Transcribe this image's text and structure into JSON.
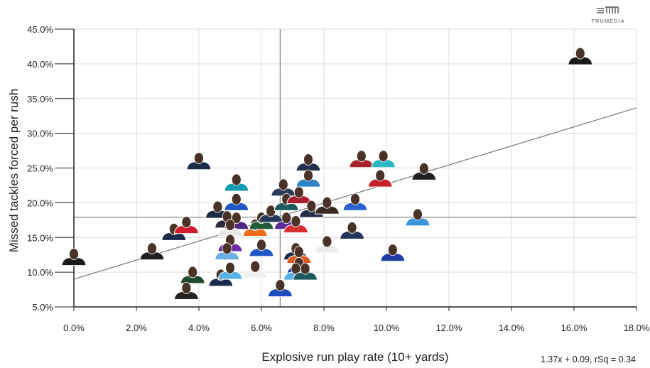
{
  "logo": {
    "text": "TRUMEDIA"
  },
  "chart_data": {
    "type": "scatter",
    "title": "",
    "xlabel": "Explosive run play rate (10+ yards)",
    "ylabel": "Missed tackles forced per rush",
    "xlim": [
      0,
      18
    ],
    "ylim": [
      5,
      45
    ],
    "x_ticks": [
      "0.0%",
      "2.0%",
      "4.0%",
      "6.0%",
      "8.0%",
      "10.0%",
      "12.0%",
      "14.0%",
      "16.0%",
      "18.0%"
    ],
    "y_ticks": [
      "5.0%",
      "10.0%",
      "15.0%",
      "20.0%",
      "25.0%",
      "30.0%",
      "35.0%",
      "40.0%",
      "45.0%"
    ],
    "grid": true,
    "marker": "player headshot",
    "average_lines": {
      "x": 6.6,
      "y": 17.9
    },
    "trendline": {
      "slope": 1.37,
      "intercept": 0.09,
      "label": "1.37x + 0.09, rSq = 0.34"
    },
    "points": [
      {
        "x": 0.0,
        "y": 12.1,
        "team_color": "#1a1a1a"
      },
      {
        "x": 2.5,
        "y": 12.9,
        "team_color": "#1e1e24"
      },
      {
        "x": 3.2,
        "y": 15.7,
        "team_color": "#1c2a4a"
      },
      {
        "x": 3.6,
        "y": 16.7,
        "team_color": "#d01c2a"
      },
      {
        "x": 3.8,
        "y": 9.5,
        "team_color": "#1f4a2c"
      },
      {
        "x": 3.6,
        "y": 7.2,
        "team_color": "#2a2420"
      },
      {
        "x": 4.0,
        "y": 25.9,
        "team_color": "#1b2a48"
      },
      {
        "x": 5.2,
        "y": 22.8,
        "team_color": "#139bb0"
      },
      {
        "x": 5.2,
        "y": 20.0,
        "team_color": "#1f55c4"
      },
      {
        "x": 4.6,
        "y": 18.9,
        "team_color": "#1b2a48"
      },
      {
        "x": 4.9,
        "y": 17.5,
        "team_color": "#2a2a3a"
      },
      {
        "x": 5.2,
        "y": 17.3,
        "team_color": "#4f2683"
      },
      {
        "x": 5.0,
        "y": 16.3,
        "team_color": "#e8e8e8"
      },
      {
        "x": 5.0,
        "y": 14.1,
        "team_color": "#6a2aa8"
      },
      {
        "x": 4.9,
        "y": 12.9,
        "team_color": "#6ab0e4"
      },
      {
        "x": 4.7,
        "y": 9.1,
        "team_color": "#1c2a4a"
      },
      {
        "x": 5.0,
        "y": 10.1,
        "team_color": "#58b4e6"
      },
      {
        "x": 5.8,
        "y": 10.3,
        "team_color": "#f0f0f0"
      },
      {
        "x": 5.8,
        "y": 16.3,
        "team_color": "#f06a1e"
      },
      {
        "x": 6.0,
        "y": 13.4,
        "team_color": "#1f55c4"
      },
      {
        "x": 6.0,
        "y": 17.3,
        "team_color": "#1e5a3a"
      },
      {
        "x": 6.3,
        "y": 18.3,
        "team_color": "#253a5a"
      },
      {
        "x": 6.7,
        "y": 22.1,
        "team_color": "#2a3c5a"
      },
      {
        "x": 6.8,
        "y": 20.0,
        "team_color": "#1d5a60"
      },
      {
        "x": 7.2,
        "y": 21.0,
        "team_color": "#a8202c"
      },
      {
        "x": 6.8,
        "y": 17.3,
        "team_color": "#5a2a9a"
      },
      {
        "x": 7.1,
        "y": 16.8,
        "team_color": "#d83030"
      },
      {
        "x": 7.5,
        "y": 25.7,
        "team_color": "#22304e"
      },
      {
        "x": 7.5,
        "y": 23.4,
        "team_color": "#2a84c8"
      },
      {
        "x": 7.6,
        "y": 19.0,
        "team_color": "#22304e"
      },
      {
        "x": 8.1,
        "y": 19.5,
        "team_color": "#3a2a22"
      },
      {
        "x": 7.1,
        "y": 12.9,
        "team_color": "#1b2a48"
      },
      {
        "x": 7.2,
        "y": 12.4,
        "team_color": "#e05a1e"
      },
      {
        "x": 7.2,
        "y": 10.8,
        "team_color": "#1e3ca8"
      },
      {
        "x": 7.1,
        "y": 10.0,
        "team_color": "#5ab0e8"
      },
      {
        "x": 7.4,
        "y": 10.0,
        "team_color": "#1d5a60"
      },
      {
        "x": 6.6,
        "y": 7.6,
        "team_color": "#1f4cc0"
      },
      {
        "x": 8.1,
        "y": 13.9,
        "team_color": "#ececec"
      },
      {
        "x": 9.0,
        "y": 20.0,
        "team_color": "#2a62d0"
      },
      {
        "x": 8.9,
        "y": 15.9,
        "team_color": "#253a5a"
      },
      {
        "x": 9.2,
        "y": 26.2,
        "team_color": "#a8202c"
      },
      {
        "x": 9.9,
        "y": 26.2,
        "team_color": "#2ab8c4"
      },
      {
        "x": 9.8,
        "y": 23.4,
        "team_color": "#c81e2a"
      },
      {
        "x": 11.2,
        "y": 24.4,
        "team_color": "#1e1e1e"
      },
      {
        "x": 11.0,
        "y": 17.8,
        "team_color": "#3a96d8"
      },
      {
        "x": 10.2,
        "y": 12.7,
        "team_color": "#1e3ca8"
      },
      {
        "x": 16.2,
        "y": 41.0,
        "team_color": "#1a1a1a"
      }
    ]
  }
}
